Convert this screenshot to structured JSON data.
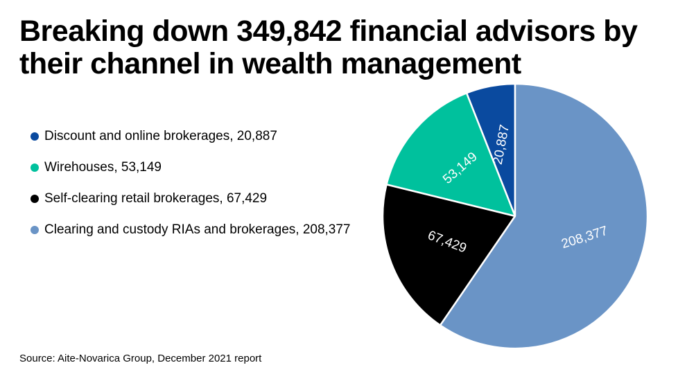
{
  "title_lines": [
    "Breaking down 349,842 financial advisors by",
    "their channel in wealth management"
  ],
  "source": "Source: Aite-Novarica Group, December 2021 report",
  "chart_data": {
    "type": "pie",
    "title": "Breaking down 349,842 financial advisors by their channel in wealth management",
    "total": 349842,
    "legend_position": "left",
    "slices": [
      {
        "name": "Discount and online brokerages",
        "value": 20887,
        "label": "20,887",
        "legend": "Discount and online brokerages, 20,887",
        "color": "#0a4a9f"
      },
      {
        "name": "Wirehouses",
        "value": 53149,
        "label": "53,149",
        "legend": "Wirehouses, 53,149",
        "color": "#00c19d"
      },
      {
        "name": "Self-clearing retail brokerages",
        "value": 67429,
        "label": "67,429",
        "legend": "Self-clearing retail brokerages, 67,429",
        "color": "#000000"
      },
      {
        "name": "Clearing and custody RIAs and brokerages",
        "value": 208377,
        "label": "208,377",
        "legend": "Clearing and custody RIAs and brokerages, 208,377",
        "color": "#6a94c6"
      }
    ]
  }
}
